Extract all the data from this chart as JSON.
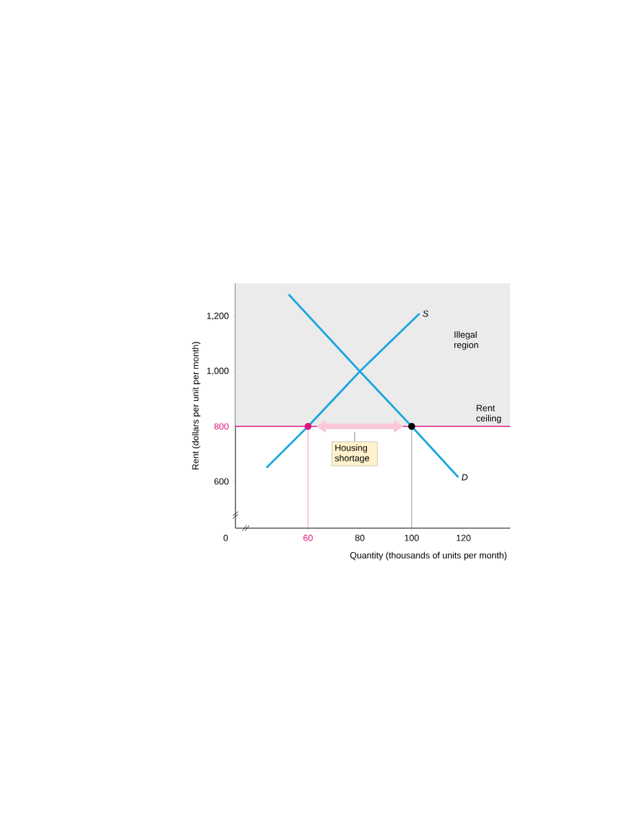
{
  "chart_data": {
    "type": "line",
    "xlabel": "Quantity (thousands of units per month)",
    "ylabel": "Rent (dollars per unit per month)",
    "xlim": [
      32,
      138
    ],
    "ylim": [
      430,
      1320
    ],
    "xticks": [
      60,
      80,
      100,
      120
    ],
    "yticks": [
      600,
      800,
      {
        "value": 1000,
        "label": "1,000"
      },
      {
        "value": 1200,
        "label": "1,200"
      }
    ],
    "series": [
      {
        "name": "S",
        "color": "#1aa6e0",
        "x": [
          44,
          60,
          80,
          103
        ],
        "values": [
          650,
          800,
          1000,
          1210
        ]
      },
      {
        "name": "D",
        "color": "#1aa6e0",
        "x": [
          52.5,
          80,
          100,
          118
        ],
        "values": [
          1280,
          1000,
          800,
          615
        ]
      },
      {
        "type": "line",
        "color": "#e0147f",
        "x": [
          60,
          60
        ],
        "values": [
          430,
          800
        ],
        "line_style": "dotted"
      },
      {
        "type": "line",
        "color": "#000000",
        "x": [
          100,
          100
        ],
        "values": [
          430,
          800
        ],
        "line_style": "dotted"
      },
      {
        "type": "scatter",
        "colors": [
          "#e0147f",
          "#000000"
        ],
        "x": [
          60,
          100
        ],
        "values": [
          800,
          800
        ],
        "marker": "circle"
      }
    ],
    "ref_lines": [
      {
        "axis": "y",
        "value": 800,
        "label": "Rent ceiling",
        "color": "#e0147f"
      }
    ],
    "bands": [
      {
        "axis": "y",
        "from": 800,
        "to": 1320,
        "label": "Illegal region",
        "color": "#ebebeb"
      }
    ],
    "annotations": [
      "Housing shortage",
      "0"
    ]
  }
}
